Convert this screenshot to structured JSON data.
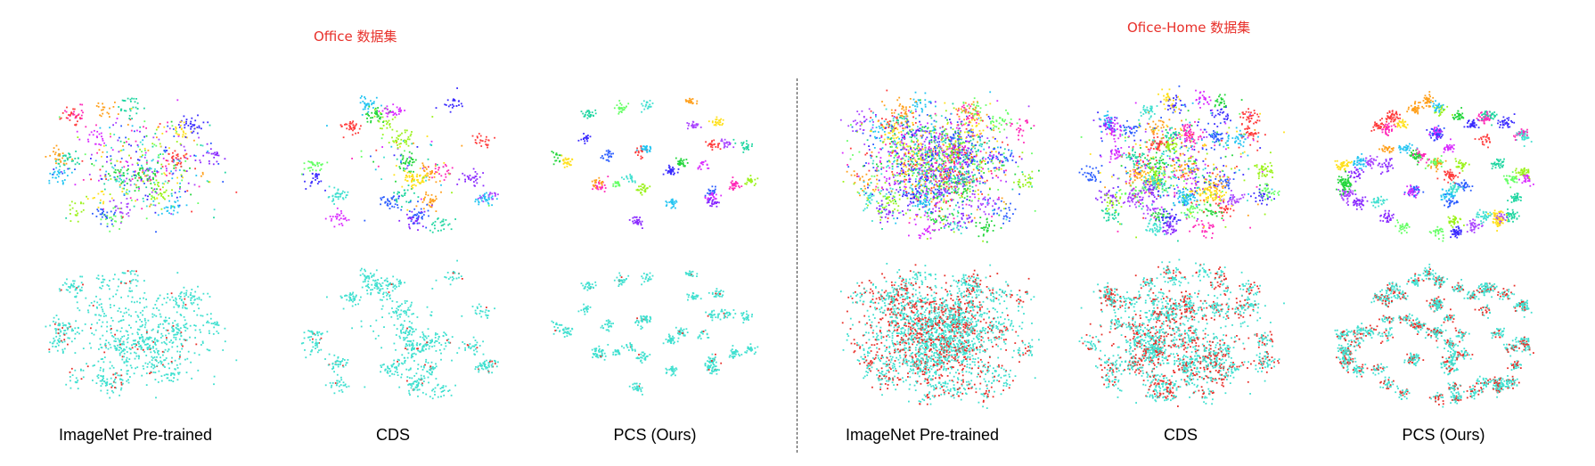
{
  "groups": [
    {
      "title": "Office 数据集"
    },
    {
      "title": "Ofice-Home 数据集"
    }
  ],
  "panels": [
    {
      "label": "ImageNet Pre-trained"
    },
    {
      "label": "CDS"
    },
    {
      "label": "PCS (Ours)"
    },
    {
      "label": "ImageNet Pre-trained"
    },
    {
      "label": "CDS"
    },
    {
      "label": "PCS (Ours)"
    }
  ],
  "colors": {
    "title": "#e8302a",
    "domain_source": "#40e0d0",
    "domain_target": "#e8302a",
    "class_palette": [
      "#ff3b3b",
      "#ff9f1a",
      "#ffe01a",
      "#9bf21a",
      "#22d63b",
      "#1fd6a1",
      "#22c4f2",
      "#2a5cff",
      "#3a2aff",
      "#8a2aff",
      "#d92aff",
      "#ff2ab8",
      "#40e0d0",
      "#66ff66",
      "#aa44ff"
    ]
  }
}
